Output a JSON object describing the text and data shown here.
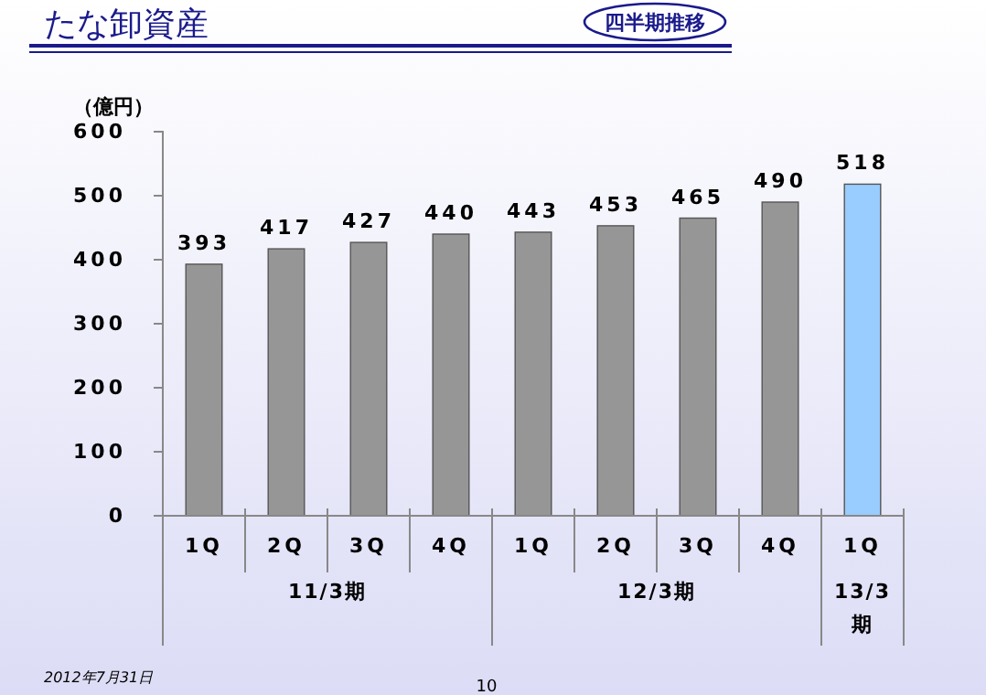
{
  "chart_data": {
    "type": "bar",
    "title": "たな卸資産",
    "ylabel": "（億円）",
    "categories": [
      "1Q",
      "2Q",
      "3Q",
      "4Q",
      "1Q",
      "2Q",
      "3Q",
      "4Q",
      "1Q"
    ],
    "values": [
      393,
      417,
      427,
      440,
      443,
      453,
      465,
      490,
      518
    ],
    "colors": [
      "#969696",
      "#969696",
      "#969696",
      "#969696",
      "#969696",
      "#969696",
      "#969696",
      "#969696",
      "#99ccff"
    ],
    "ylim": [
      0,
      600
    ],
    "yticks": [
      0,
      100,
      200,
      300,
      400,
      500,
      600
    ],
    "data_labels": true,
    "annotations": [
      "四半期推移",
      "11/3期",
      "12/3期",
      "13/3期",
      "2012年7月31日",
      "10"
    ]
  }
}
